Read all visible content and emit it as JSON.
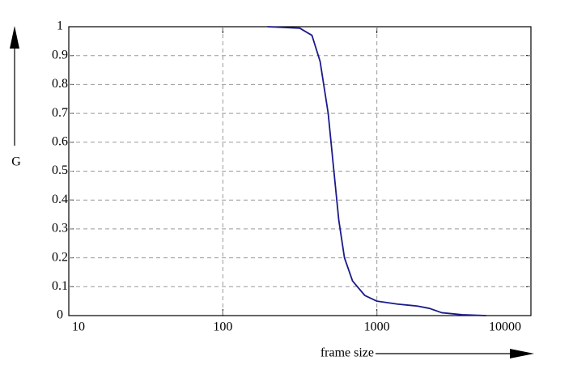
{
  "chart_data": {
    "type": "line",
    "xlabel": "frame size",
    "ylabel": "G",
    "xscale": "log",
    "x": [
      195,
      316,
      379,
      428,
      483,
      526,
      566,
      616,
      695,
      834,
      1000,
      1355,
      1834,
      2191,
      2636,
      3570,
      5130
    ],
    "series": [
      {
        "color": "#1a1a8c",
        "values": [
          1,
          0.995,
          0.97,
          0.88,
          0.7,
          0.5,
          0.33,
          0.2,
          0.12,
          0.07,
          0.05,
          0.04,
          0.033,
          0.025,
          0.01,
          0.003,
          0
        ]
      }
    ],
    "xlim": [
      10,
      10000
    ],
    "xticks": [
      10,
      100,
      1000,
      10000
    ],
    "ylim": [
      0,
      1
    ],
    "yticks": [
      0,
      0.1,
      0.2,
      0.3,
      0.4,
      0.5,
      0.6,
      0.7,
      0.8,
      0.9,
      1
    ],
    "grid": true
  }
}
